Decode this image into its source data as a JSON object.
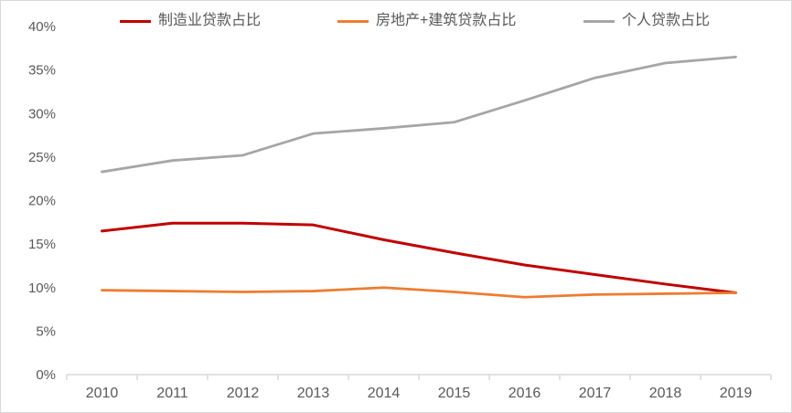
{
  "chart_data": {
    "type": "line",
    "title": "",
    "categories": [
      "2010",
      "2011",
      "2012",
      "2013",
      "2014",
      "2015",
      "2016",
      "2017",
      "2018",
      "2019"
    ],
    "series": [
      {
        "name": "制造业贷款占比",
        "color": "#C00000",
        "values": [
          16.5,
          17.4,
          17.4,
          17.2,
          15.5,
          14.0,
          12.6,
          11.5,
          10.4,
          9.4
        ]
      },
      {
        "name": "房地产+建筑贷款占比",
        "color": "#ED7D31",
        "values": [
          9.7,
          9.6,
          9.5,
          9.6,
          10.0,
          9.5,
          8.9,
          9.2,
          9.3,
          9.4
        ]
      },
      {
        "name": "个人贷款占比",
        "color": "#A6A6A6",
        "values": [
          23.3,
          24.6,
          25.2,
          27.7,
          28.3,
          29.0,
          31.5,
          34.1,
          35.8,
          36.5
        ]
      }
    ],
    "xlabel": "",
    "ylabel": "",
    "y_axis": {
      "min": 0,
      "max": 40,
      "step": 5,
      "tick_labels": [
        "0%",
        "5%",
        "10%",
        "15%",
        "20%",
        "25%",
        "30%",
        "35%",
        "40%"
      ]
    },
    "grid": false,
    "legend_position": "top"
  },
  "colors": {
    "text": "#595959",
    "axis_line": "#D9D9D9",
    "background": "#FFFFFF",
    "border": "#D9D9D9"
  }
}
